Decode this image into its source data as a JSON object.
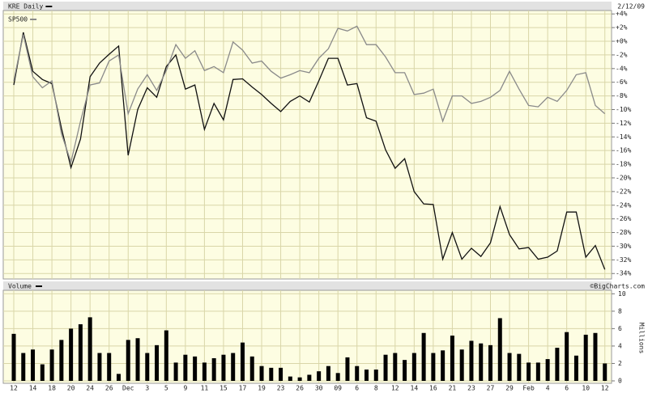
{
  "chart_data": [
    {
      "type": "line",
      "date": "2/12/09",
      "series": [
        {
          "name": "KRE Daily",
          "color": "#111111",
          "values": [
            -6.4,
            1.3,
            -4.4,
            -5.6,
            -6.2,
            -12.7,
            -18.5,
            -14.3,
            -5.2,
            -3.2,
            -1.9,
            -0.7,
            -16.7,
            -10,
            -6.8,
            -8.2,
            -3.7,
            -2.0,
            -7,
            -6.4,
            -12.9,
            -9.1,
            -11.5,
            -5.6,
            -5.5,
            -6.7,
            -7.8,
            -9.1,
            -10.3,
            -8.8,
            -8,
            -8.9,
            -5.8,
            -2.5,
            -2.5,
            -6.4,
            -6.2,
            -11.2,
            -11.7,
            -15.9,
            -18.6,
            -17.2,
            -22,
            -23.8,
            -23.9,
            -31.9,
            -28,
            -31.9,
            -30.3,
            -31.5,
            -29.5,
            -24.2,
            -28.3,
            -30.4,
            -30.2,
            -31.9,
            -31.6,
            -30.7,
            -25,
            -25,
            -31.6,
            -29.9,
            -33.4
          ]
        },
        {
          "name": "SP500",
          "color": "#8a8a8a",
          "values": [
            -5.8,
            1.0,
            -5.2,
            -6.8,
            -5.8,
            -13.5,
            -17.7,
            -11.7,
            -6.4,
            -6.1,
            -2.9,
            -2.0,
            -10.6,
            -7,
            -4.9,
            -7.2,
            -4.3,
            -0.5,
            -2.5,
            -1.4,
            -4.3,
            -3.7,
            -4.6,
            -0.1,
            -1.3,
            -3.2,
            -2.9,
            -4.4,
            -5.4,
            -4.9,
            -4.3,
            -4.6,
            -2.5,
            -1.1,
            1.9,
            1.5,
            2.2,
            -0.5,
            -0.5,
            -2.3,
            -4.6,
            -4.6,
            -7.8,
            -7.6,
            -7,
            -11.7,
            -8,
            -8,
            -9.1,
            -8.8,
            -8.2,
            -7.2,
            -4.4,
            -7,
            -9.4,
            -9.6,
            -8.2,
            -8.8,
            -7.2,
            -4.9,
            -4.6,
            -9.4,
            -10.6
          ]
        }
      ],
      "ylim": [
        -34.8,
        4.5
      ],
      "yticks": [
        {
          "value": 4,
          "label": "+4%"
        },
        {
          "value": 2,
          "label": "+2%"
        },
        {
          "value": 0,
          "label": "+0%"
        },
        {
          "value": -2,
          "label": "-2%"
        },
        {
          "value": -4,
          "label": "-4%"
        },
        {
          "value": -6,
          "label": "-6%"
        },
        {
          "value": -8,
          "label": "-8%"
        },
        {
          "value": -10,
          "label": "-10%"
        },
        {
          "value": -12,
          "label": "-12%"
        },
        {
          "value": -14,
          "label": "-14%"
        },
        {
          "value": -16,
          "label": "-16%"
        },
        {
          "value": -18,
          "label": "-18%"
        },
        {
          "value": -20,
          "label": "-20%"
        },
        {
          "value": -22,
          "label": "-22%"
        },
        {
          "value": -24,
          "label": "-24%"
        },
        {
          "value": -26,
          "label": "-26%"
        },
        {
          "value": -28,
          "label": "-28%"
        },
        {
          "value": -30,
          "label": "-30%"
        },
        {
          "value": -32,
          "label": "-32%"
        },
        {
          "value": -34,
          "label": "-34%"
        }
      ],
      "grid": true
    },
    {
      "type": "bar",
      "title": "Volume",
      "source": "©BigCharts.com",
      "y_label": "Millions",
      "color": "#000000",
      "categories": [
        "12",
        null,
        "14",
        null,
        "18",
        null,
        "20",
        null,
        "24",
        null,
        "26",
        null,
        "Dec",
        null,
        "3",
        null,
        "5",
        null,
        "9",
        null,
        "11",
        null,
        "15",
        null,
        "17",
        null,
        "19",
        null,
        "23",
        null,
        "26",
        null,
        "30",
        null,
        "09",
        null,
        "6",
        null,
        "8",
        null,
        "12",
        null,
        "14",
        null,
        "16",
        null,
        "21",
        null,
        "23",
        null,
        "27",
        null,
        "29",
        null,
        "Feb",
        null,
        "4",
        null,
        "6",
        null,
        "10",
        null,
        "12"
      ],
      "values": [
        5.4,
        3.2,
        3.6,
        1.9,
        3.6,
        4.7,
        6.0,
        6.5,
        7.3,
        3.2,
        3.2,
        0.8,
        4.7,
        4.9,
        3.2,
        4.1,
        5.8,
        2.1,
        3.0,
        2.8,
        2.1,
        2.6,
        3.0,
        3.2,
        4.4,
        2.8,
        1.7,
        1.5,
        1.5,
        0.5,
        0.4,
        0.7,
        1.1,
        1.7,
        0.9,
        2.7,
        1.7,
        1.3,
        1.3,
        3.0,
        3.2,
        2.4,
        3.2,
        5.5,
        3.2,
        3.5,
        5.2,
        3.6,
        4.6,
        4.3,
        4.1,
        7.2,
        3.2,
        3.1,
        2.1,
        2.1,
        2.5,
        3.8,
        5.6,
        2.9,
        5.3,
        5.5,
        2.0
      ],
      "ylim": [
        0,
        10.4
      ],
      "yticks": [
        0,
        2,
        4,
        6,
        8,
        10
      ],
      "grid": true
    }
  ]
}
